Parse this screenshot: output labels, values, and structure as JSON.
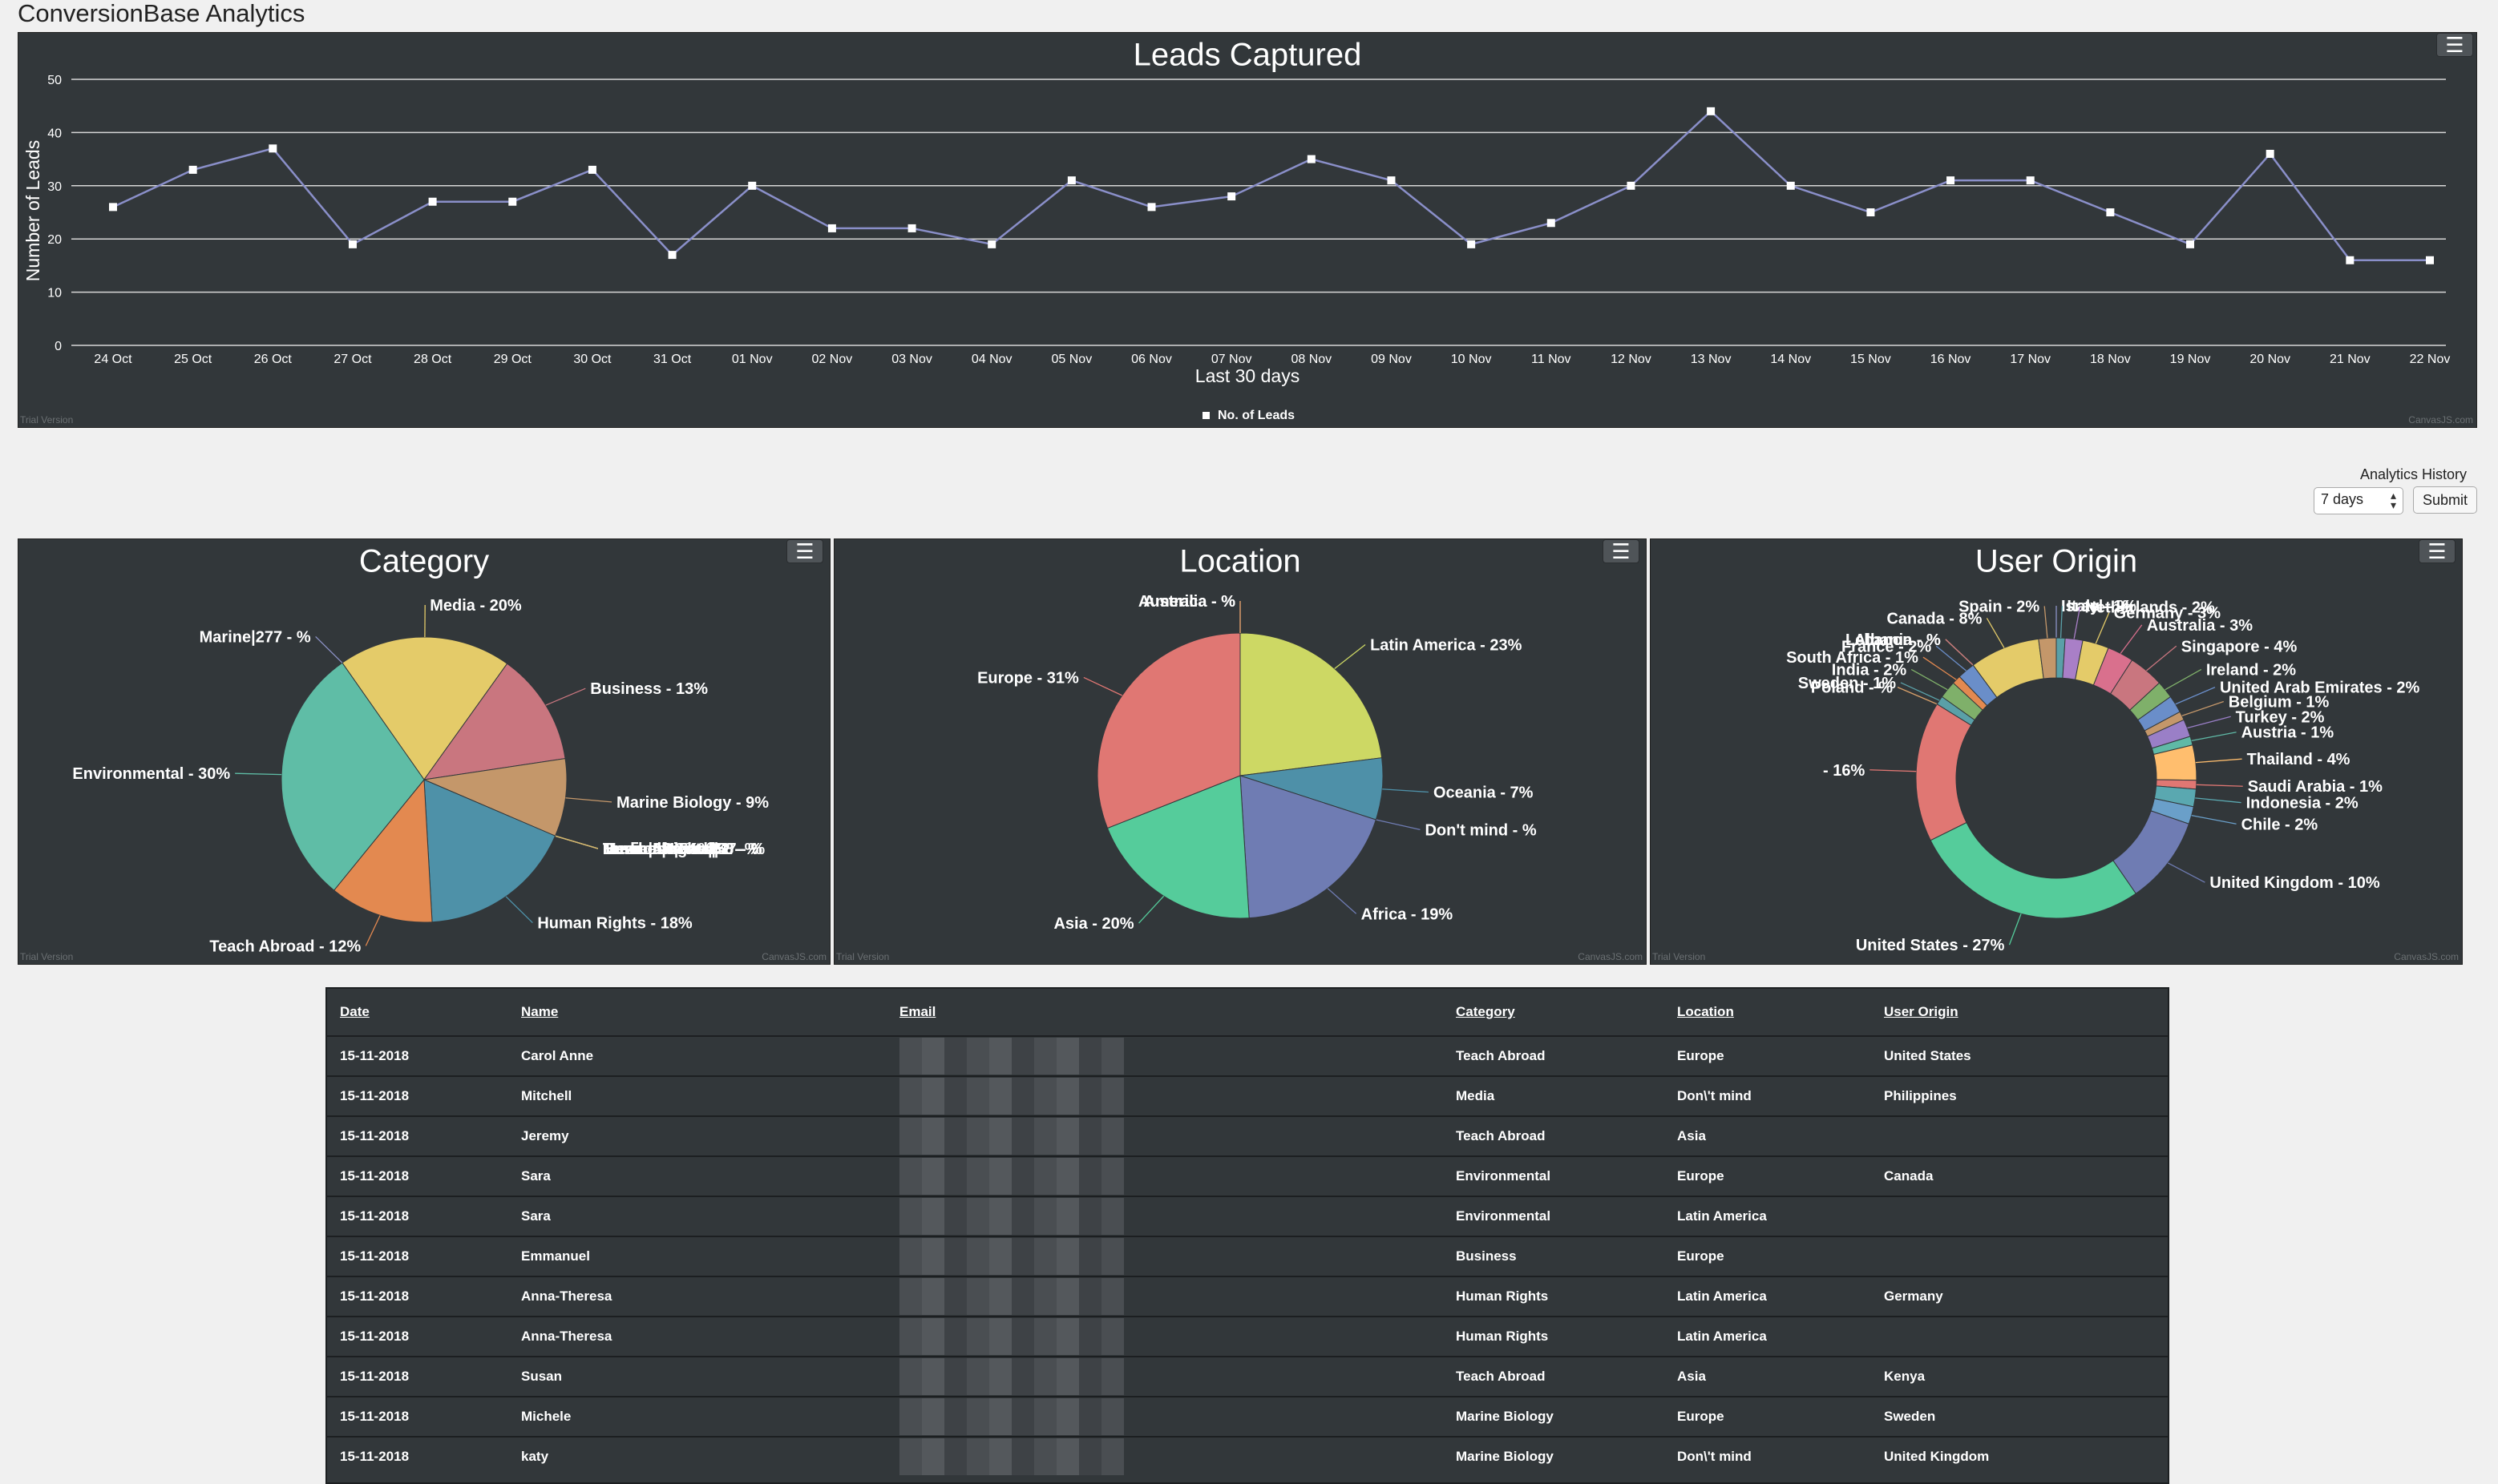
{
  "app": {
    "title": "ConversionBase Analytics"
  },
  "leads_chart": {
    "title": "Leads Captured",
    "xlabel": "Last 30 days",
    "ylabel": "Number of Leads",
    "legend": "No. of Leads",
    "watermark_left": "Trial Version",
    "watermark_right": "CanvasJS.com"
  },
  "history": {
    "label": "Analytics History",
    "selected": "7 days",
    "submit_label": "Submit"
  },
  "pie_watermark_left": "Trial Version",
  "pie_watermark_right": "CanvasJS.com",
  "chart_data": [
    {
      "type": "line",
      "title": "Leads Captured",
      "xlabel": "Last 30 days",
      "ylabel": "Number of Leads",
      "ylim": [
        0,
        50
      ],
      "yticks": [
        0,
        10,
        20,
        30,
        40,
        50
      ],
      "grid": true,
      "legend_position": "bottom",
      "categories": [
        "24 Oct",
        "25 Oct",
        "26 Oct",
        "27 Oct",
        "28 Oct",
        "29 Oct",
        "30 Oct",
        "31 Oct",
        "01 Nov",
        "02 Nov",
        "03 Nov",
        "04 Nov",
        "05 Nov",
        "06 Nov",
        "07 Nov",
        "08 Nov",
        "09 Nov",
        "10 Nov",
        "11 Nov",
        "12 Nov",
        "13 Nov",
        "14 Nov",
        "15 Nov",
        "16 Nov",
        "17 Nov",
        "18 Nov",
        "19 Nov",
        "20 Nov",
        "21 Nov",
        "22 Nov"
      ],
      "series": [
        {
          "name": "No. of Leads",
          "color": "#8a8fc9",
          "values": [
            26,
            33,
            37,
            19,
            27,
            27,
            33,
            17,
            30,
            22,
            22,
            19,
            31,
            26,
            28,
            35,
            31,
            19,
            23,
            30,
            44,
            30,
            25,
            31,
            31,
            25,
            19,
            36,
            16,
            16
          ]
        }
      ]
    },
    {
      "type": "pie",
      "title": "Category",
      "slices": [
        {
          "label": "Media - 20%",
          "value": 20,
          "color": "#e4cb69"
        },
        {
          "label": "Business - 13%",
          "value": 13,
          "color": "#c9767f"
        },
        {
          "label": "Marine Biology - 9%",
          "value": 9,
          "color": "#c4976a"
        },
        {
          "label": "Human Rights|58 - %",
          "value": 0,
          "color": "#5aa0a8"
        },
        {
          "label": "Environmental|47 - %",
          "value": 0,
          "color": "#5fb9a6"
        },
        {
          "label": "Business|54 - %",
          "value": 0,
          "color": "#c9767f"
        },
        {
          "label": "Teach Abroad|62 - %",
          "value": 0,
          "color": "#e38950"
        },
        {
          "label": "Media|53 - %",
          "value": 0,
          "color": "#e4cb69"
        },
        {
          "label": "Medical|43 - %",
          "value": 0,
          "color": "#d3b870"
        },
        {
          "label": "Human Rights - 18%",
          "value": 18,
          "color": "#4e91a8"
        },
        {
          "label": "Teach Abroad - 12%",
          "value": 12,
          "color": "#e38950"
        },
        {
          "label": "Environmental - 30%",
          "value": 30,
          "color": "#5fbda6"
        },
        {
          "label": "Marine|277 - %",
          "value": 0,
          "color": "#8c92c7"
        }
      ]
    },
    {
      "type": "pie",
      "title": "Location",
      "slices": [
        {
          "label": "Latin America - 23%",
          "value": 23,
          "color": "#cdd864"
        },
        {
          "label": "Oceania - 7%",
          "value": 7,
          "color": "#4e90a8"
        },
        {
          "label": "Don't mind - %",
          "value": 0,
          "color": "#6f7cb3"
        },
        {
          "label": "Africa - 19%",
          "value": 19,
          "color": "#6f7cb3"
        },
        {
          "label": "Asia - 20%",
          "value": 20,
          "color": "#55cc9b"
        },
        {
          "label": "Europe - 31%",
          "value": 31,
          "color": "#e07773"
        },
        {
          "label": "America - %",
          "value": 0,
          "color": "#e07773"
        },
        {
          "label": "Australia - %",
          "value": 0,
          "color": "#d9a06a"
        }
      ]
    },
    {
      "type": "pie",
      "title": "User Origin",
      "doughnut": true,
      "slices": [
        {
          "label": "Israel - %",
          "value": 0,
          "color": "#8c92c7"
        },
        {
          "label": "Italy - 1%",
          "value": 1,
          "color": "#5aa0a8"
        },
        {
          "label": "Netherlands - 2%",
          "value": 2,
          "color": "#a97fc7"
        },
        {
          "label": "Germany - 3%",
          "value": 3,
          "color": "#e4cb69"
        },
        {
          "label": "Australia - 3%",
          "value": 3,
          "color": "#d9708d"
        },
        {
          "label": "Singapore - 4%",
          "value": 4,
          "color": "#c9767f"
        },
        {
          "label": "Ireland - 2%",
          "value": 2,
          "color": "#7fb06a"
        },
        {
          "label": "United Arab Emirates - 2%",
          "value": 2,
          "color": "#6a8ec9"
        },
        {
          "label": "Belgium - 1%",
          "value": 1,
          "color": "#c4976a"
        },
        {
          "label": "Turkey - 2%",
          "value": 2,
          "color": "#9a7fc7"
        },
        {
          "label": "Austria - 1%",
          "value": 1,
          "color": "#5fb9a6"
        },
        {
          "label": "Thailand - 4%",
          "value": 4,
          "color": "#ffbe6e"
        },
        {
          "label": "Saudi Arabia - 1%",
          "value": 1,
          "color": "#e07773"
        },
        {
          "label": "Indonesia - 2%",
          "value": 2,
          "color": "#5aa8b0"
        },
        {
          "label": "Chile - 2%",
          "value": 2,
          "color": "#6a9fc9"
        },
        {
          "label": "United Kingdom - 10%",
          "value": 10,
          "color": "#6f7cb3"
        },
        {
          "label": "United States - 27%",
          "value": 27,
          "color": "#55cc9b"
        },
        {
          "label": " - 16%",
          "value": 16,
          "color": "#e07773"
        },
        {
          "label": "Poland - %",
          "value": 0,
          "color": "#d9a06a"
        },
        {
          "label": "Sweden - 1%",
          "value": 1,
          "color": "#5aa0a8"
        },
        {
          "label": "India - 2%",
          "value": 2,
          "color": "#7fb06a"
        },
        {
          "label": "South Africa - 1%",
          "value": 1,
          "color": "#e38950"
        },
        {
          "label": "France - 2%",
          "value": 2,
          "color": "#6a8ec9"
        },
        {
          "label": "Albania - %",
          "value": 0,
          "color": "#e4cb69"
        },
        {
          "label": "Lebanon - %",
          "value": 0,
          "color": "#c9767f"
        },
        {
          "label": "Canada - 8%",
          "value": 8,
          "color": "#e4cb69"
        },
        {
          "label": "Spain - 2%",
          "value": 2,
          "color": "#c4976a"
        }
      ]
    }
  ],
  "table": {
    "headers": [
      "Date",
      "Name",
      "Email",
      "Category",
      "Location",
      "User Origin"
    ],
    "rows": [
      [
        "15-11-2018",
        "Carol Anne",
        "",
        "Teach Abroad",
        "Europe",
        "United States"
      ],
      [
        "15-11-2018",
        "Mitchell",
        "",
        "Media",
        "Don\\'t mind",
        "Philippines"
      ],
      [
        "15-11-2018",
        "Jeremy",
        "",
        "Teach Abroad",
        "Asia",
        ""
      ],
      [
        "15-11-2018",
        "Sara",
        "",
        "Environmental",
        "Europe",
        "Canada"
      ],
      [
        "15-11-2018",
        "Sara",
        "",
        "Environmental",
        "Latin America",
        ""
      ],
      [
        "15-11-2018",
        "Emmanuel",
        "",
        "Business",
        "Europe",
        ""
      ],
      [
        "15-11-2018",
        "Anna-Theresa",
        "",
        "Human Rights",
        "Latin America",
        "Germany"
      ],
      [
        "15-11-2018",
        "Anna-Theresa",
        "",
        "Human Rights",
        "Latin America",
        ""
      ],
      [
        "15-11-2018",
        "Susan",
        "",
        "Teach Abroad",
        "Asia",
        "Kenya"
      ],
      [
        "15-11-2018",
        "Michele",
        "",
        "Marine Biology",
        "Europe",
        "Sweden"
      ],
      [
        "15-11-2018",
        "katy",
        "",
        "Marine Biology",
        "Don\\'t mind",
        "United Kingdom"
      ]
    ]
  }
}
